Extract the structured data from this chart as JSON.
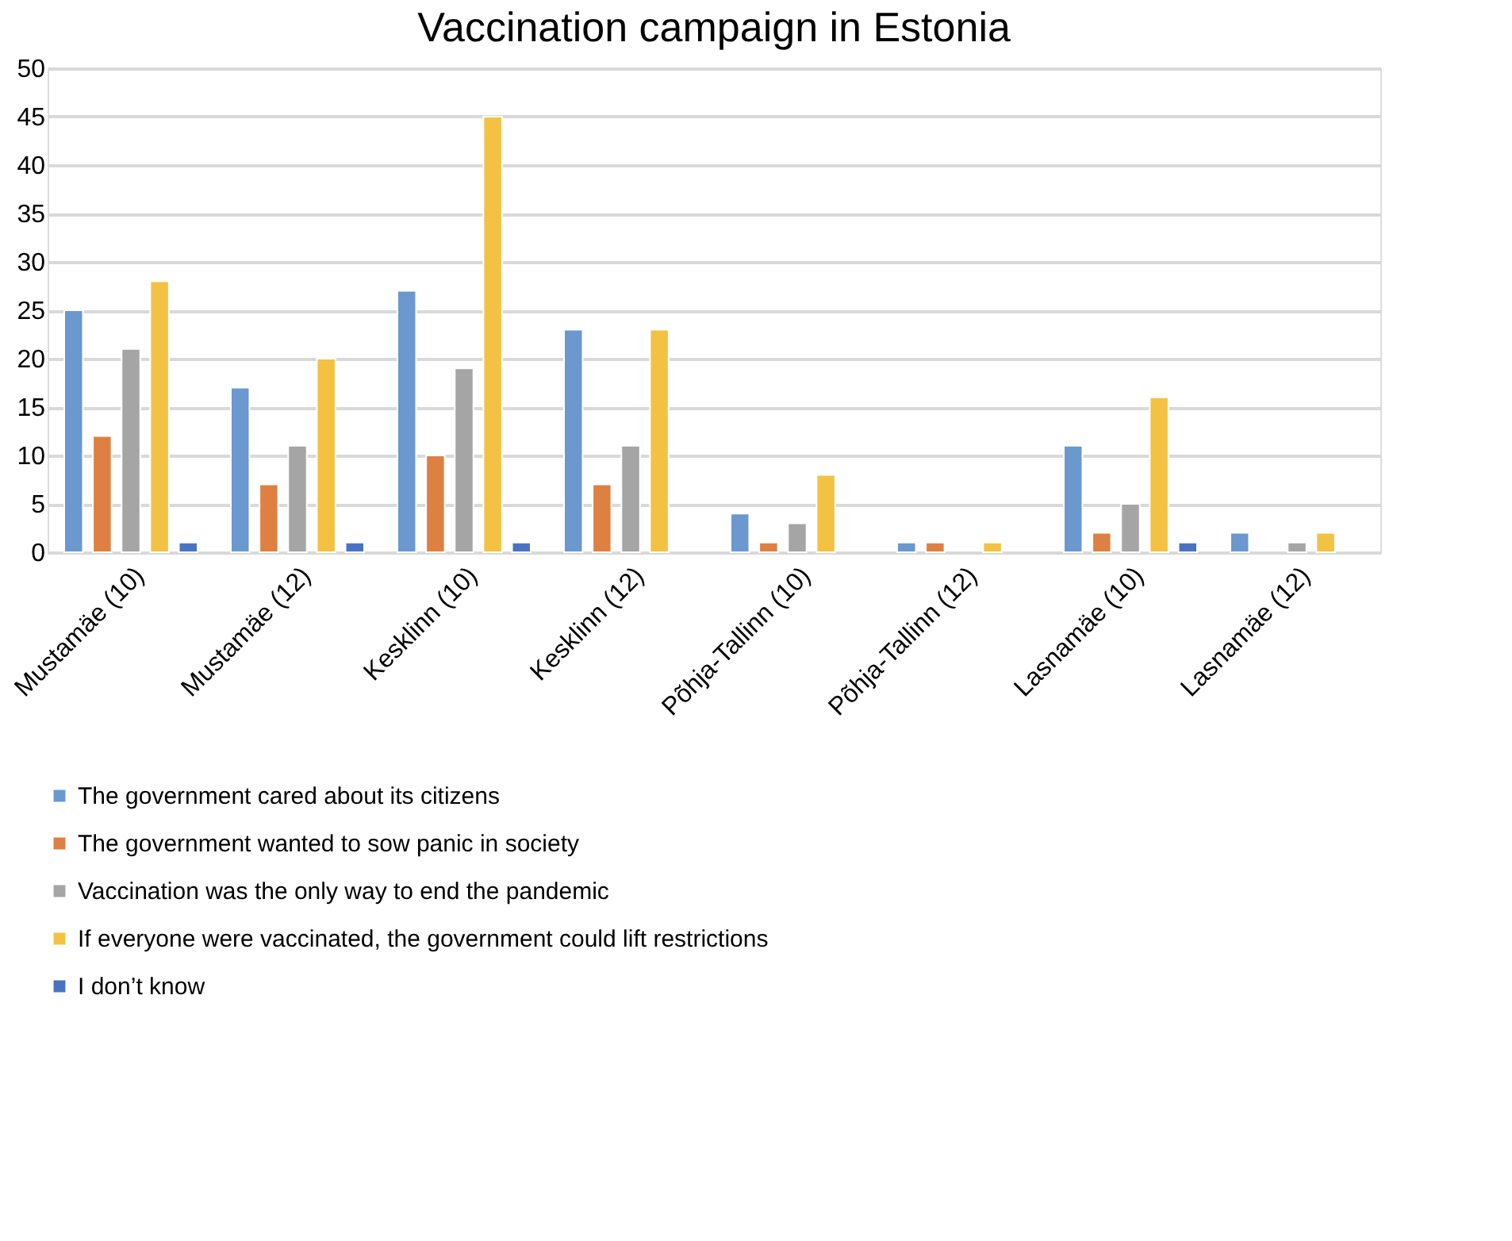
{
  "chart_data": {
    "type": "bar",
    "title": "Vaccination campaign in Estonia",
    "categories": [
      "Mustamäe (10)",
      "Mustamäe (12)",
      "Kesklinn (10)",
      "Kesklinn (12)",
      "Põhja-Tallinn (10)",
      "Põhja-Tallinn (12)",
      "Lasnamäe (10)",
      "Lasnamäe (12)"
    ],
    "series": [
      {
        "name": "The government cared about its citizens",
        "color": "#6a98cf",
        "values": [
          25,
          17,
          27,
          23,
          4,
          1,
          11,
          2
        ]
      },
      {
        "name": "The government wanted to sow panic in society",
        "color": "#dd8042",
        "values": [
          12,
          7,
          10,
          7,
          1,
          1,
          2,
          null
        ]
      },
      {
        "name": "Vaccination was the only way to end the pandemic",
        "color": "#a5a5a5",
        "values": [
          21,
          11,
          19,
          11,
          3,
          null,
          5,
          1
        ]
      },
      {
        "name": "If everyone were vaccinated, the government could lift restrictions",
        "color": "#f4c242",
        "values": [
          28,
          20,
          45,
          23,
          8,
          1,
          16,
          2
        ]
      },
      {
        "name": "I don’t know",
        "color": "#4a72c2",
        "values": [
          1,
          1,
          1,
          null,
          null,
          null,
          1,
          null
        ]
      }
    ],
    "ylim": [
      0,
      50
    ],
    "yticks": [
      0,
      5,
      10,
      15,
      20,
      25,
      30,
      35,
      40,
      45,
      50
    ],
    "grid": "y",
    "legend": "bottom"
  }
}
